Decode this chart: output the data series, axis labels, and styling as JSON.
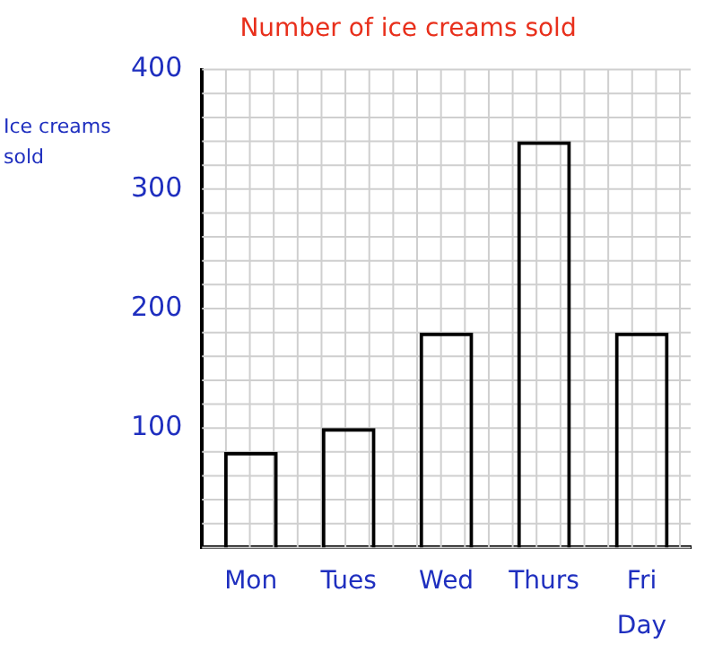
{
  "chart_data": {
    "type": "bar",
    "title": "Number of ice creams sold",
    "xlabel": "Day",
    "ylabel": "Ice creams sold",
    "categories": [
      "Mon",
      "Tues",
      "Wed",
      "Thurs",
      "Fri"
    ],
    "values": [
      80,
      100,
      180,
      340,
      180
    ],
    "color": "#000000",
    "ylim": [
      0,
      400
    ],
    "yticks": [
      100,
      200,
      300,
      400
    ],
    "grid": true
  }
}
